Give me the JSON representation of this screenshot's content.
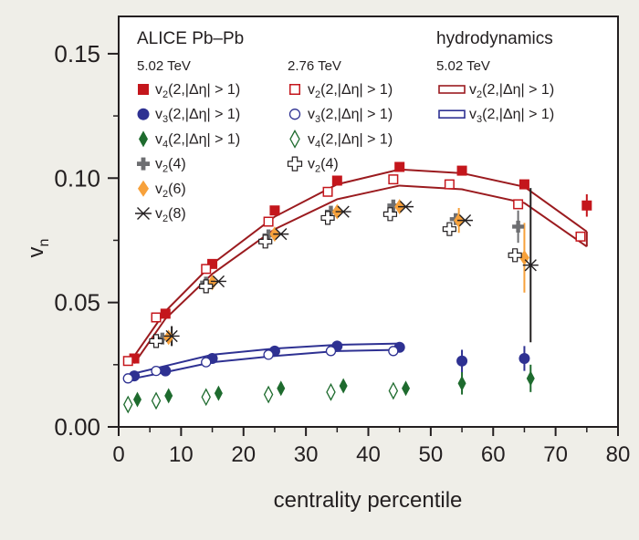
{
  "chart_data": {
    "type": "scatter",
    "xlabel": "centrality percentile",
    "ylabel": "v",
    "ylabel_sub": "n",
    "xlim": [
      0,
      80
    ],
    "ylim": [
      0,
      0.165
    ],
    "xticks": [
      0,
      10,
      20,
      30,
      40,
      50,
      60,
      70,
      80
    ],
    "xtick_labels": [
      "0",
      "10",
      "20",
      "30",
      "40",
      "50",
      "60",
      "70",
      "80"
    ],
    "yticks": [
      0,
      0.05,
      0.1,
      0.15
    ],
    "ytick_labels": [
      "0.00",
      "0.05",
      "0.10",
      "0.15"
    ],
    "legend": {
      "header_left": "ALICE Pb–Pb",
      "header_right": "hydrodynamics",
      "energy_502": "5.02 TeV",
      "energy_276": "2.76 TeV",
      "energy_hydro": "5.02 TeV"
    },
    "series": [
      {
        "name": "v2(2,|Δη| > 1)",
        "energy": "5.02 TeV",
        "marker": "square-filled",
        "color": "#c4161c",
        "x": [
          2.5,
          7.5,
          15,
          25,
          35,
          45,
          55,
          65,
          75
        ],
        "y": [
          0.0275,
          0.0455,
          0.0655,
          0.087,
          0.099,
          0.1045,
          0.103,
          0.0975,
          0.089
        ],
        "err": [
          0,
          0,
          0,
          0,
          0,
          0,
          0,
          0,
          0.0045
        ]
      },
      {
        "name": "v3(2,|Δη| > 1)",
        "energy": "5.02 TeV",
        "marker": "circle-filled",
        "color": "#2e3192",
        "x": [
          2.5,
          7.5,
          15,
          25,
          35,
          45,
          55,
          65
        ],
        "y": [
          0.0205,
          0.0225,
          0.0275,
          0.0305,
          0.0325,
          0.032,
          0.0265,
          0.0275
        ],
        "err": [
          0,
          0,
          0,
          0,
          0,
          0,
          0.0045,
          0.005
        ]
      },
      {
        "name": "v4(2,|Δη| > 1)",
        "energy": "5.02 TeV",
        "marker": "diamond-filled",
        "color": "#1e6b2e",
        "x": [
          3,
          8,
          16,
          26,
          36,
          46,
          55,
          66
        ],
        "y": [
          0.011,
          0.0125,
          0.0135,
          0.0155,
          0.0165,
          0.0155,
          0.0175,
          0.0195
        ],
        "err": [
          0,
          0,
          0,
          0,
          0,
          0,
          0.0045,
          0.0055
        ]
      },
      {
        "name": "v2(4)",
        "energy": "5.02 TeV",
        "marker": "cross-filled",
        "color": "#6d6e71",
        "x": [
          7,
          14,
          24,
          34,
          44,
          54,
          64
        ],
        "y": [
          0.0355,
          0.058,
          0.077,
          0.0865,
          0.089,
          0.0835,
          0.0805
        ],
        "err": [
          0,
          0,
          0,
          0,
          0,
          0,
          0.0065
        ]
      },
      {
        "name": "v2(6)",
        "energy": "5.02 TeV",
        "marker": "diamond-orange",
        "color": "#f7a13b",
        "x": [
          8,
          15,
          25,
          35,
          45,
          54.5,
          65
        ],
        "y": [
          0.036,
          0.058,
          0.0775,
          0.0865,
          0.0885,
          0.083,
          0.068
        ],
        "err": [
          0,
          0,
          0,
          0,
          0,
          0.005,
          0.014
        ]
      },
      {
        "name": "v2(8)",
        "energy": "5.02 TeV",
        "marker": "asterisk",
        "color": "#231f20",
        "x": [
          8.5,
          16,
          26,
          36,
          46,
          55.5,
          66
        ],
        "y": [
          0.0365,
          0.0585,
          0.0775,
          0.0865,
          0.0885,
          0.083,
          0.065
        ],
        "err": [
          0.004,
          0,
          0,
          0,
          0,
          0,
          0.031
        ]
      },
      {
        "name": "v2(2,|Δη| > 1)",
        "energy": "2.76 TeV",
        "marker": "square-open",
        "color": "#c4161c",
        "x": [
          1.5,
          6,
          14,
          24,
          33.5,
          44,
          53,
          64,
          74
        ],
        "y": [
          0.0265,
          0.044,
          0.0635,
          0.0825,
          0.0945,
          0.0995,
          0.0975,
          0.0895,
          0.0765
        ],
        "err": [
          0,
          0,
          0,
          0,
          0,
          0,
          0,
          0,
          0
        ]
      },
      {
        "name": "v3(2,|Δη| > 1)",
        "energy": "2.76 TeV",
        "marker": "circle-open",
        "color": "#2e3192",
        "x": [
          1.5,
          6,
          14,
          24,
          34,
          44
        ],
        "y": [
          0.0195,
          0.0225,
          0.026,
          0.029,
          0.0305,
          0.0305
        ],
        "err": [
          0,
          0,
          0,
          0,
          0,
          0
        ]
      },
      {
        "name": "v4(2,|Δη| > 1)",
        "energy": "2.76 TeV",
        "marker": "diamond-open",
        "color": "#1e6b2e",
        "x": [
          1.5,
          6,
          14,
          24,
          34,
          44
        ],
        "y": [
          0.009,
          0.0105,
          0.012,
          0.013,
          0.014,
          0.0145
        ],
        "err": [
          0,
          0,
          0,
          0,
          0,
          0
        ]
      },
      {
        "name": "v2(4)",
        "energy": "2.76 TeV",
        "marker": "cross-open",
        "color": "#231f20",
        "x": [
          6,
          14,
          23.5,
          33.5,
          43.5,
          53,
          63.5
        ],
        "y": [
          0.0345,
          0.0565,
          0.0745,
          0.084,
          0.0855,
          0.0795,
          0.069
        ],
        "err": [
          0,
          0,
          0,
          0,
          0,
          0,
          0
        ]
      }
    ],
    "hydro_bands": [
      {
        "name": "v2(2,|Δη| > 1)",
        "energy": "5.02 TeV",
        "color": "#9b1b1f",
        "x": [
          2.5,
          7.5,
          15,
          25,
          35,
          45,
          55,
          65,
          75
        ],
        "upper": [
          0.0285,
          0.0465,
          0.0655,
          0.0845,
          0.0975,
          0.1035,
          0.102,
          0.0965,
          0.0785
        ],
        "lower": [
          0.0255,
          0.0435,
          0.0615,
          0.0795,
          0.0915,
          0.097,
          0.0955,
          0.09,
          0.0725
        ]
      },
      {
        "name": "v3(2,|Δη| > 1)",
        "energy": "5.02 TeV",
        "color": "#2e3192",
        "x": [
          2.5,
          7.5,
          15,
          25,
          35,
          45
        ],
        "upper": [
          0.0215,
          0.0245,
          0.029,
          0.0315,
          0.033,
          0.0335
        ],
        "lower": [
          0.0195,
          0.022,
          0.026,
          0.0285,
          0.0305,
          0.031
        ]
      }
    ],
    "grid": false,
    "legend_placement": "top"
  }
}
